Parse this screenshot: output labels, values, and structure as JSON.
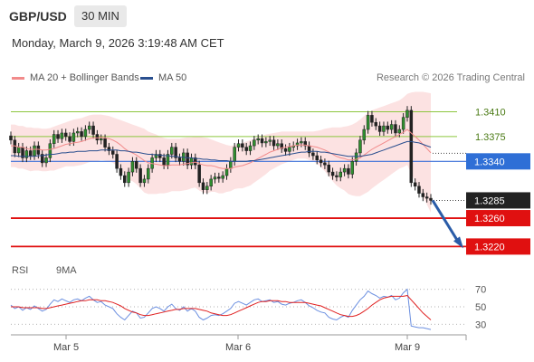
{
  "header": {
    "pair": "GBP/USD",
    "timeframe": "30 MIN",
    "timestamp": "Monday, March 9, 2026 3:19:48 AM CET"
  },
  "legend": {
    "bollinger_label": "MA 20 + Bollinger Bands",
    "ma50_label": "MA 50",
    "copyright": "Research © 2026 Trading Central",
    "rsi_label": "RSI",
    "rsi_ma_label": "9MA"
  },
  "colors": {
    "bollinger": "#f28b8b",
    "ma50": "#2a4f8f",
    "rsi": "#6b8fe0",
    "rsi_ma": "#e02020",
    "resistance": "#8dc63f",
    "support": "#e01010",
    "pivot": "#3a6fd8",
    "arrow": "#2a5ca8"
  },
  "chart_data": [
    {
      "type": "candlestick",
      "y_range": [
        1.3195,
        1.3445
      ],
      "x_ticks": [
        "Mar 5",
        "Mar 6",
        "Mar 9"
      ],
      "levels": [
        {
          "value": 1.341,
          "label": "1.3410",
          "kind": "resistance"
        },
        {
          "value": 1.3375,
          "label": "1.3375",
          "kind": "resistance"
        },
        {
          "value": 1.334,
          "label": "1.3340",
          "kind": "pivot"
        },
        {
          "value": 1.3285,
          "label": "1.3285",
          "kind": "last"
        },
        {
          "value": 1.326,
          "label": "1.3260",
          "kind": "support"
        },
        {
          "value": 1.322,
          "label": "1.3220",
          "kind": "support"
        }
      ],
      "forecast_arrow": {
        "from": 1.3285,
        "to": 1.322
      },
      "close": [
        1.337,
        1.3352,
        1.336,
        1.3345,
        1.3355,
        1.3348,
        1.3362,
        1.335,
        1.3338,
        1.3345,
        1.3365,
        1.3378,
        1.3372,
        1.338,
        1.3375,
        1.3368,
        1.338,
        1.3382,
        1.3375,
        1.3385,
        1.339,
        1.3378,
        1.337,
        1.3372,
        1.336,
        1.3355,
        1.335,
        1.333,
        1.332,
        1.331,
        1.3325,
        1.334,
        1.333,
        1.331,
        1.3315,
        1.333,
        1.3345,
        1.335,
        1.3345,
        1.3335,
        1.335,
        1.336,
        1.3345,
        1.334,
        1.3352,
        1.3335,
        1.3345,
        1.3335,
        1.331,
        1.33,
        1.3305,
        1.3315,
        1.3318,
        1.3316,
        1.332,
        1.333,
        1.334,
        1.336,
        1.3365,
        1.336,
        1.3355,
        1.3362,
        1.337,
        1.3372,
        1.3366,
        1.3368,
        1.337,
        1.3362,
        1.3365,
        1.3358,
        1.3354,
        1.336,
        1.3362,
        1.3366,
        1.3368,
        1.3362,
        1.3352,
        1.3348,
        1.3342,
        1.3338,
        1.3335,
        1.3325,
        1.332,
        1.3318,
        1.3325,
        1.333,
        1.3322,
        1.334,
        1.3352,
        1.337,
        1.3385,
        1.3405,
        1.3395,
        1.339,
        1.3382,
        1.339,
        1.3385,
        1.3392,
        1.338,
        1.3385,
        1.3402,
        1.3412,
        1.331,
        1.3305,
        1.3295,
        1.329,
        1.3288,
        1.3285
      ],
      "ma20": [
        1.3362,
        1.3362,
        1.336,
        1.336,
        1.3358,
        1.3357,
        1.3357,
        1.3357,
        1.3356,
        1.3356,
        1.3357,
        1.3358,
        1.336,
        1.3362,
        1.3364,
        1.3365,
        1.3366,
        1.3367,
        1.3368,
        1.337,
        1.3372,
        1.3373,
        1.3373,
        1.3374,
        1.3373,
        1.3372,
        1.337,
        1.3367,
        1.3363,
        1.3358,
        1.3354,
        1.3352,
        1.3349,
        1.3345,
        1.3341,
        1.3338,
        1.3337,
        1.3336,
        1.3335,
        1.3334,
        1.3334,
        1.3335,
        1.3335,
        1.3335,
        1.3336,
        1.3337,
        1.3338,
        1.3339,
        1.3337,
        1.3335,
        1.3334,
        1.3334,
        1.3333,
        1.3331,
        1.333,
        1.333,
        1.333,
        1.3332,
        1.3333,
        1.3334,
        1.3336,
        1.3338,
        1.3341,
        1.3344,
        1.3347,
        1.335,
        1.3353,
        1.3355,
        1.3357,
        1.3359,
        1.336,
        1.3361,
        1.3362,
        1.3363,
        1.3363,
        1.3363,
        1.3362,
        1.3361,
        1.336,
        1.3358,
        1.3356,
        1.3353,
        1.335,
        1.3347,
        1.3345,
        1.3344,
        1.3342,
        1.3342,
        1.3343,
        1.3345,
        1.3349,
        1.3353,
        1.3357,
        1.336,
        1.3363,
        1.3366,
        1.3369,
        1.3372,
        1.3375,
        1.3378,
        1.3381,
        1.3385,
        1.338,
        1.3375,
        1.337,
        1.3364,
        1.3358,
        1.3352
      ],
      "bb_upper": [
        1.3392,
        1.3392,
        1.339,
        1.339,
        1.3388,
        1.3388,
        1.3387,
        1.3387,
        1.3386,
        1.3386,
        1.3387,
        1.3389,
        1.3391,
        1.3393,
        1.3395,
        1.3397,
        1.3399,
        1.34,
        1.3401,
        1.3403,
        1.3405,
        1.3406,
        1.3406,
        1.3406,
        1.3405,
        1.3404,
        1.3402,
        1.34,
        1.3398,
        1.3396,
        1.3394,
        1.3392,
        1.339,
        1.3388,
        1.3386,
        1.3382,
        1.338,
        1.3378,
        1.3375,
        1.3373,
        1.3372,
        1.3372,
        1.3372,
        1.3372,
        1.3373,
        1.3374,
        1.3374,
        1.3375,
        1.3375,
        1.3374,
        1.3373,
        1.3371,
        1.3369,
        1.3367,
        1.3365,
        1.3363,
        1.3362,
        1.3363,
        1.3364,
        1.3366,
        1.3368,
        1.337,
        1.3372,
        1.3374,
        1.3376,
        1.3378,
        1.3379,
        1.338,
        1.3381,
        1.3382,
        1.3382,
        1.3382,
        1.3382,
        1.3382,
        1.3382,
        1.3382,
        1.3382,
        1.3382,
        1.3383,
        1.3384,
        1.3386,
        1.3387,
        1.3388,
        1.3388,
        1.3388,
        1.3389,
        1.339,
        1.3392,
        1.3395,
        1.3399,
        1.3404,
        1.3409,
        1.3412,
        1.3414,
        1.3416,
        1.3418,
        1.342,
        1.3422,
        1.3424,
        1.3426,
        1.343,
        1.3435,
        1.3437,
        1.3438,
        1.3438,
        1.3438,
        1.3437,
        1.3436
      ],
      "bb_lower": [
        1.3332,
        1.3332,
        1.333,
        1.333,
        1.3328,
        1.3326,
        1.3327,
        1.3327,
        1.3326,
        1.3326,
        1.3327,
        1.3327,
        1.3329,
        1.3331,
        1.3333,
        1.3333,
        1.3333,
        1.3334,
        1.3335,
        1.3337,
        1.3339,
        1.334,
        1.334,
        1.3342,
        1.3341,
        1.334,
        1.3338,
        1.3334,
        1.3328,
        1.332,
        1.3314,
        1.3312,
        1.3308,
        1.3302,
        1.3296,
        1.3294,
        1.3294,
        1.3294,
        1.3295,
        1.3295,
        1.3296,
        1.3298,
        1.3298,
        1.3298,
        1.3299,
        1.33,
        1.3302,
        1.3303,
        1.3299,
        1.3296,
        1.3295,
        1.3297,
        1.3297,
        1.3295,
        1.3295,
        1.3297,
        1.3298,
        1.3301,
        1.3302,
        1.3302,
        1.3304,
        1.3306,
        1.331,
        1.3314,
        1.3318,
        1.3322,
        1.3327,
        1.333,
        1.3333,
        1.3336,
        1.3338,
        1.334,
        1.3342,
        1.3344,
        1.3344,
        1.3344,
        1.3342,
        1.334,
        1.3337,
        1.3332,
        1.3326,
        1.3319,
        1.3312,
        1.3306,
        1.3302,
        1.3299,
        1.3294,
        1.3292,
        1.3291,
        1.3291,
        1.3294,
        1.3297,
        1.3302,
        1.3306,
        1.331,
        1.3314,
        1.3318,
        1.3322,
        1.3326,
        1.333,
        1.3332,
        1.3335,
        1.3323,
        1.3312,
        1.3302,
        1.329,
        1.3279,
        1.3268
      ],
      "ma50": [
        1.3348,
        1.3348,
        1.3347,
        1.3347,
        1.3347,
        1.3347,
        1.3347,
        1.3348,
        1.3348,
        1.3349,
        1.335,
        1.335,
        1.3351,
        1.3352,
        1.3352,
        1.3353,
        1.3353,
        1.3354,
        1.3354,
        1.3354,
        1.3355,
        1.3355,
        1.3355,
        1.3356,
        1.3356,
        1.3356,
        1.3356,
        1.3356,
        1.3355,
        1.3355,
        1.3354,
        1.3353,
        1.3353,
        1.3352,
        1.3351,
        1.335,
        1.335,
        1.3349,
        1.3349,
        1.3348,
        1.3348,
        1.3347,
        1.3347,
        1.3346,
        1.3346,
        1.3345,
        1.3345,
        1.3344,
        1.3344,
        1.3343,
        1.3343,
        1.3342,
        1.3342,
        1.3341,
        1.3341,
        1.3341,
        1.334,
        1.334,
        1.334,
        1.334,
        1.334,
        1.3341,
        1.3341,
        1.3342,
        1.3343,
        1.3344,
        1.3345,
        1.3346,
        1.3347,
        1.3348,
        1.3349,
        1.335,
        1.3351,
        1.3352,
        1.3353,
        1.3353,
        1.3354,
        1.3354,
        1.3354,
        1.3353,
        1.3353,
        1.3352,
        1.3351,
        1.335,
        1.3349,
        1.3348,
        1.3347,
        1.3347,
        1.3347,
        1.3347,
        1.3348,
        1.3349,
        1.335,
        1.3352,
        1.3354,
        1.3356,
        1.3358,
        1.336,
        1.3362,
        1.3364,
        1.3366,
        1.3368,
        1.3368,
        1.3367,
        1.3366,
        1.3364,
        1.3362,
        1.336
      ]
    },
    {
      "type": "line",
      "y_range": [
        22,
        78
      ],
      "y_ticks": [
        70,
        50,
        30
      ],
      "rsi": [
        52,
        48,
        50,
        46,
        49,
        47,
        51,
        48,
        45,
        47,
        53,
        58,
        56,
        59,
        57,
        55,
        58,
        59,
        57,
        60,
        62,
        58,
        55,
        56,
        52,
        50,
        48,
        42,
        38,
        35,
        40,
        45,
        43,
        37,
        38,
        43,
        48,
        50,
        48,
        45,
        50,
        53,
        48,
        46,
        50,
        45,
        48,
        45,
        38,
        35,
        37,
        40,
        41,
        40,
        42,
        45,
        48,
        54,
        56,
        54,
        52,
        55,
        58,
        59,
        56,
        57,
        58,
        55,
        56,
        53,
        52,
        54,
        55,
        57,
        58,
        55,
        51,
        49,
        46,
        44,
        43,
        38,
        36,
        35,
        38,
        40,
        38,
        46,
        52,
        58,
        62,
        68,
        65,
        63,
        60,
        62,
        61,
        63,
        58,
        60,
        66,
        70,
        28,
        27,
        26,
        26,
        25,
        24
      ],
      "rsi_ma": [
        50,
        50,
        50,
        49,
        49,
        49,
        49,
        49,
        48,
        48,
        49,
        50,
        51,
        52,
        53,
        54,
        55,
        56,
        57,
        57,
        58,
        58,
        58,
        57,
        57,
        56,
        55,
        53,
        51,
        48,
        46,
        44,
        43,
        41,
        40,
        40,
        41,
        42,
        43,
        44,
        45,
        46,
        47,
        47,
        48,
        48,
        48,
        48,
        47,
        46,
        45,
        43,
        42,
        41,
        40,
        40,
        41,
        43,
        45,
        47,
        49,
        51,
        53,
        55,
        56,
        56,
        57,
        57,
        57,
        56,
        56,
        55,
        55,
        55,
        55,
        55,
        54,
        53,
        52,
        51,
        49,
        47,
        45,
        43,
        41,
        40,
        39,
        39,
        40,
        42,
        45,
        48,
        52,
        55,
        58,
        60,
        61,
        62,
        62,
        62,
        62,
        63,
        58,
        53,
        48,
        43,
        39,
        35
      ]
    }
  ]
}
